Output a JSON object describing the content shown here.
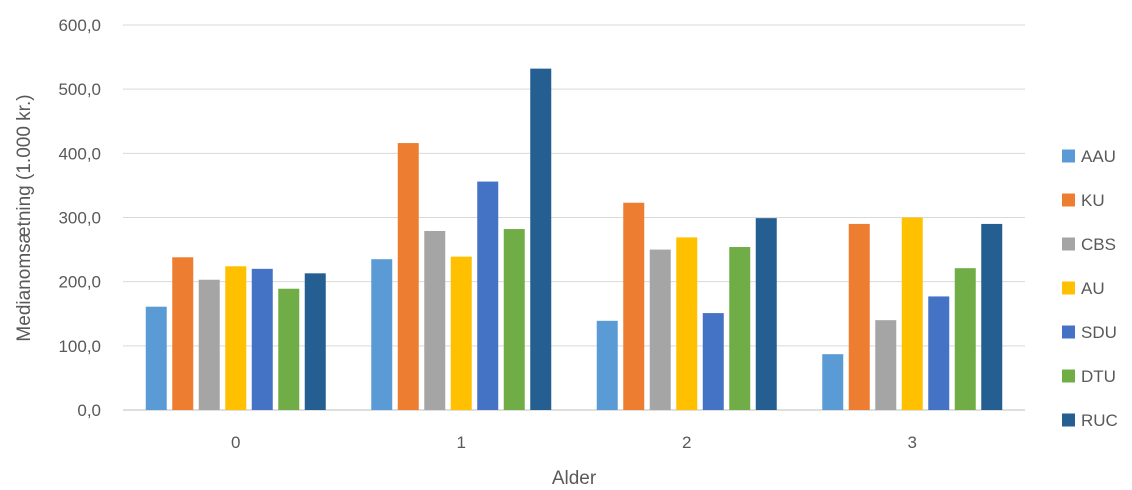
{
  "chart_data": {
    "type": "bar",
    "title": "",
    "xlabel": "Alder",
    "ylabel": "Medianomsætning (1.000 kr.)",
    "categories": [
      "0",
      "1",
      "2",
      "3"
    ],
    "ylim": [
      0,
      600
    ],
    "yticks": [
      "0,0",
      "100,0",
      "200,0",
      "300,0",
      "400,0",
      "500,0",
      "600,0"
    ],
    "grid": true,
    "legend_position": "right",
    "series": [
      {
        "name": "AAU",
        "color": "#5B9BD5",
        "values": [
          161,
          235,
          139,
          87
        ]
      },
      {
        "name": "KU",
        "color": "#ED7D31",
        "values": [
          238,
          416,
          323,
          290
        ]
      },
      {
        "name": "CBS",
        "color": "#A5A5A5",
        "values": [
          203,
          279,
          250,
          140
        ]
      },
      {
        "name": "AU",
        "color": "#FFC000",
        "values": [
          224,
          239,
          269,
          300
        ]
      },
      {
        "name": "SDU",
        "color": "#4472C4",
        "values": [
          220,
          356,
          151,
          177
        ]
      },
      {
        "name": "DTU",
        "color": "#70AD47",
        "values": [
          189,
          282,
          254,
          221
        ]
      },
      {
        "name": "RUC",
        "color": "#255E91",
        "values": [
          213,
          532,
          299,
          290
        ]
      }
    ]
  }
}
